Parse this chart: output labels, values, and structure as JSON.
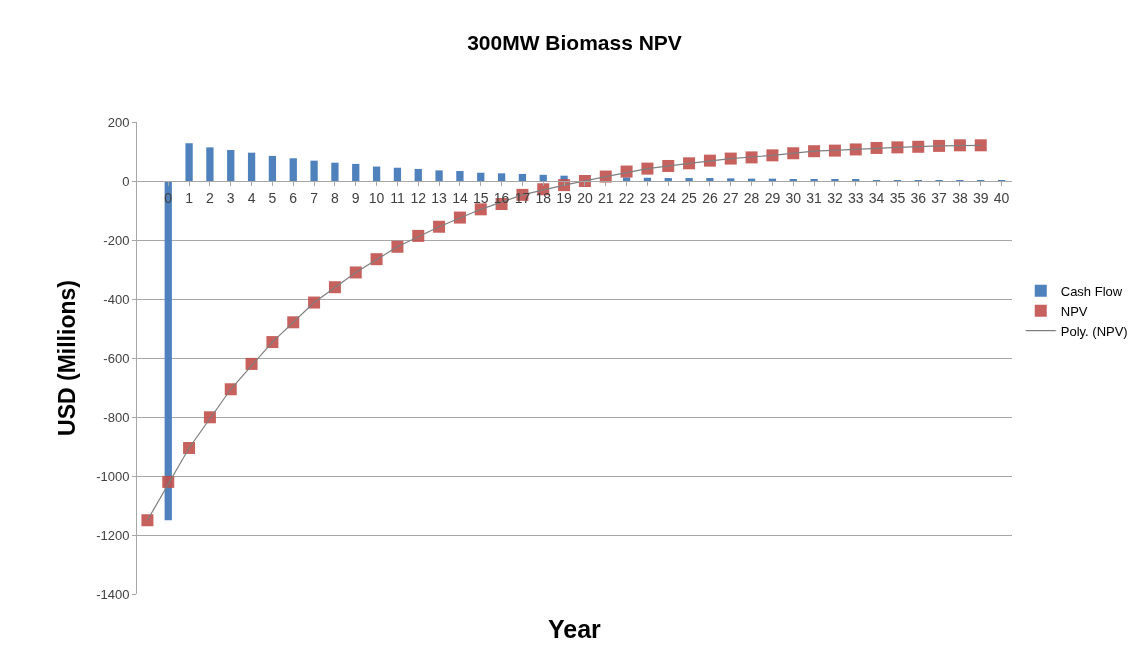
{
  "chart_data": {
    "type": "bar",
    "title": "300MW Biomass NPV",
    "xlabel": "Year",
    "ylabel": "USD (Millions)",
    "x": [
      0,
      1,
      2,
      3,
      4,
      5,
      6,
      7,
      8,
      9,
      10,
      11,
      12,
      13,
      14,
      15,
      16,
      17,
      18,
      19,
      20,
      21,
      22,
      23,
      24,
      25,
      26,
      27,
      28,
      29,
      30,
      31,
      32,
      33,
      34,
      35,
      36,
      37,
      38,
      39,
      40
    ],
    "series": [
      {
        "name": "Cash Flow",
        "color": "#4f81bd",
        "values": [
          -1150,
          128,
          114,
          105,
          96,
          85,
          77,
          69,
          62,
          58,
          49,
          45,
          41,
          36,
          34,
          28,
          26,
          24,
          21,
          18,
          null,
          null,
          12,
          11,
          10,
          10,
          10,
          9,
          8,
          8,
          5,
          5,
          4,
          4,
          2,
          2,
          2,
          1,
          1,
          1,
          1
        ]
      },
      {
        "name": "NPV",
        "type": "scatter",
        "color": "#c0504d",
        "marker": "square",
        "x": [
          -1,
          0,
          1,
          2,
          3,
          4,
          5,
          6,
          7,
          8,
          9,
          10,
          11,
          12,
          13,
          14,
          15,
          16,
          17,
          18,
          19,
          20,
          21,
          22,
          23,
          24,
          25,
          26,
          27,
          28,
          29,
          30,
          31,
          32,
          33,
          34,
          35,
          36,
          37,
          38,
          39
        ],
        "values": [
          -1150,
          -1020,
          -905,
          -801,
          -706,
          -620,
          -546,
          -479,
          -412,
          -360,
          -310,
          -265,
          -223,
          -186,
          -155,
          -124,
          -96,
          -78,
          -47,
          -28,
          -14,
          0,
          15,
          32,
          42,
          51,
          60,
          69,
          76,
          80,
          87,
          94,
          101,
          103,
          107,
          112,
          114,
          116,
          119,
          121,
          121
        ]
      },
      {
        "name": "Poly. (NPV)",
        "type": "line",
        "color": "#7f7f7f",
        "marker": "none",
        "line_style": "solid",
        "x": [
          -1,
          1,
          3,
          5,
          7,
          9,
          11,
          13,
          15,
          17,
          19,
          21,
          23,
          25,
          27,
          29,
          31,
          33,
          35,
          37,
          39
        ],
        "values": [
          -1150,
          -905,
          -706,
          -546,
          -412,
          -310,
          -223,
          -155,
          -96,
          -47,
          -14,
          15,
          42,
          60,
          76,
          87,
          101,
          107,
          114,
          119,
          121
        ]
      }
    ],
    "xlim": [
      -1.5,
      40.5
    ],
    "xticks": [
      0,
      1,
      2,
      3,
      4,
      5,
      6,
      7,
      8,
      9,
      10,
      11,
      12,
      13,
      14,
      15,
      16,
      17,
      18,
      19,
      20,
      21,
      22,
      23,
      24,
      25,
      26,
      27,
      28,
      29,
      30,
      31,
      32,
      33,
      34,
      35,
      36,
      37,
      38,
      39,
      40
    ],
    "ylim": [
      -1400,
      200
    ],
    "yticks": [
      -1400,
      -1200,
      -1000,
      -800,
      -600,
      -400,
      -200,
      0,
      200
    ],
    "grid": "y",
    "legend": "right"
  }
}
